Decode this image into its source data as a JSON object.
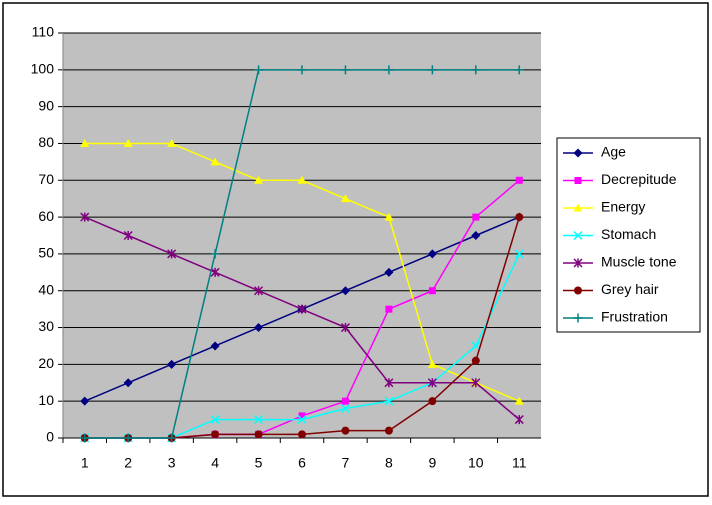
{
  "chart_data": {
    "type": "line",
    "categories": [
      "1",
      "2",
      "3",
      "4",
      "5",
      "6",
      "7",
      "8",
      "9",
      "10",
      "11"
    ],
    "ylim": [
      0,
      110
    ],
    "yticks": [
      0,
      10,
      20,
      30,
      40,
      50,
      60,
      70,
      80,
      90,
      100,
      110
    ],
    "grid": true,
    "series": [
      {
        "name": "Age",
        "color": "#000080",
        "marker": "diamond",
        "values": [
          10,
          15,
          20,
          25,
          30,
          35,
          40,
          45,
          50,
          55,
          60
        ]
      },
      {
        "name": "Decrepitude",
        "color": "#ff00ff",
        "marker": "square",
        "values": [
          0,
          0,
          0,
          1,
          1,
          6,
          10,
          35,
          40,
          60,
          70
        ]
      },
      {
        "name": "Energy",
        "color": "#ffff00",
        "marker": "triangle",
        "values": [
          80,
          80,
          80,
          75,
          70,
          70,
          65,
          60,
          20,
          15,
          10
        ]
      },
      {
        "name": "Stomach",
        "color": "#00ffff",
        "marker": "x",
        "values": [
          0,
          0,
          0,
          5,
          5,
          5,
          8,
          10,
          15,
          25,
          50
        ]
      },
      {
        "name": "Muscle tone",
        "color": "#800080",
        "marker": "star",
        "values": [
          60,
          55,
          50,
          45,
          40,
          35,
          30,
          15,
          15,
          15,
          5
        ]
      },
      {
        "name": "Grey hair",
        "color": "#800000",
        "marker": "circle",
        "values": [
          0,
          0,
          0,
          1,
          1,
          1,
          2,
          2,
          10,
          21,
          60
        ]
      },
      {
        "name": "Frustration",
        "color": "#008080",
        "marker": "plus",
        "values": [
          0,
          0,
          0,
          50,
          100,
          100,
          100,
          100,
          100,
          100,
          100
        ]
      }
    ]
  }
}
